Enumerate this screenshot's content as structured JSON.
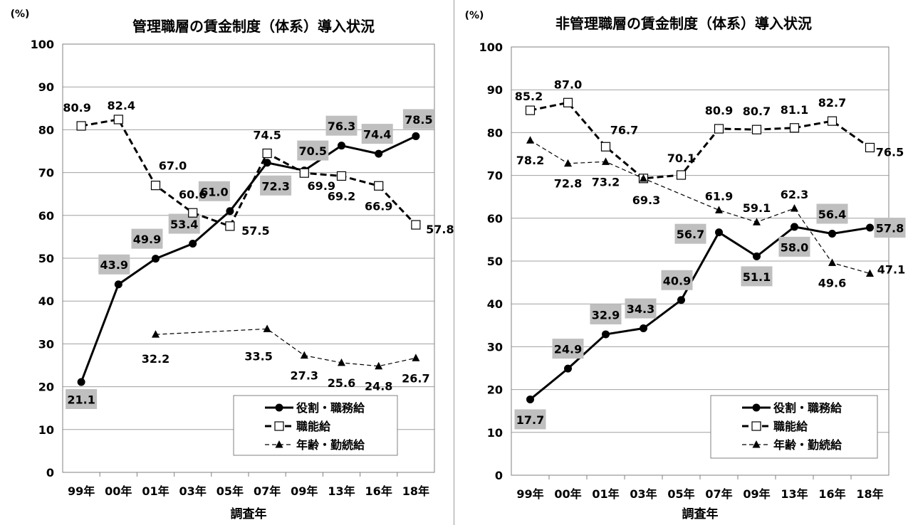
{
  "chart_data": [
    {
      "type": "line",
      "title": "管理職層の賃金制度（体系）導入状況",
      "unit_label": "(%)",
      "xlabel": "調査年",
      "categories": [
        "99年",
        "00年",
        "01年",
        "03年",
        "05年",
        "07年",
        "09年",
        "13年",
        "16年",
        "18年"
      ],
      "ylim": [
        0,
        100
      ],
      "yticks": [
        0,
        10,
        20,
        30,
        40,
        50,
        60,
        70,
        80,
        90,
        100
      ],
      "grid": true,
      "legend_position": "bottom-right",
      "series": [
        {
          "name": "役割・職務給",
          "style": "solid-thick",
          "marker": "filled-circle",
          "color": "#000000",
          "values": [
            21.1,
            43.9,
            49.9,
            53.4,
            61.0,
            72.3,
            70.5,
            76.3,
            74.4,
            78.5
          ],
          "labels": [
            "21.1",
            "43.9",
            "49.9",
            "53.4",
            "61.0",
            "72.3",
            "70.5",
            "76.3",
            "74.4",
            "78.5"
          ]
        },
        {
          "name": "職能給",
          "style": "dashed-thick",
          "marker": "open-square",
          "color": "#000000",
          "values": [
            80.9,
            82.4,
            67.0,
            60.6,
            57.5,
            74.5,
            69.9,
            69.2,
            66.9,
            57.8
          ],
          "labels": [
            "80.9",
            "82.4",
            "67.0",
            "60.6",
            "57.5",
            "74.5",
            "69.9",
            "69.2",
            "66.9",
            "57.8"
          ]
        },
        {
          "name": "年齢・勤続給",
          "style": "dashed-thin",
          "marker": "filled-triangle",
          "color": "#000000",
          "values": [
            null,
            null,
            32.2,
            null,
            null,
            33.5,
            27.3,
            25.6,
            24.8,
            26.7
          ],
          "labels": [
            null,
            null,
            "32.2",
            null,
            null,
            "33.5",
            "27.3",
            "25.6",
            "24.8",
            "26.7"
          ]
        }
      ]
    },
    {
      "type": "line",
      "title": "非管理職層の賃金制度（体系）導入状況",
      "unit_label": "(%)",
      "xlabel": "調査年",
      "categories": [
        "99年",
        "00年",
        "01年",
        "03年",
        "05年",
        "07年",
        "09年",
        "13年",
        "16年",
        "18年"
      ],
      "ylim": [
        0,
        100
      ],
      "yticks": [
        0,
        10,
        20,
        30,
        40,
        50,
        60,
        70,
        80,
        90,
        100
      ],
      "grid": true,
      "legend_position": "bottom-right",
      "series": [
        {
          "name": "役割・職務給",
          "style": "solid-thick",
          "marker": "filled-circle",
          "color": "#000000",
          "values": [
            17.7,
            24.9,
            32.9,
            34.3,
            40.9,
            56.7,
            51.1,
            58.0,
            56.4,
            57.8
          ],
          "labels": [
            "17.7",
            "24.9",
            "32.9",
            "34.3",
            "40.9",
            "56.7",
            "51.1",
            "58.0",
            "56.4",
            "57.8"
          ]
        },
        {
          "name": "職能給",
          "style": "dashed-thick",
          "marker": "open-square",
          "color": "#000000",
          "values": [
            85.2,
            87.0,
            76.7,
            69.3,
            70.1,
            80.9,
            80.7,
            81.1,
            82.7,
            76.5
          ],
          "labels": [
            "85.2",
            "87.0",
            "76.7",
            "69.3",
            "70.1",
            "80.9",
            "80.7",
            "81.1",
            "82.7",
            "76.5"
          ]
        },
        {
          "name": "年齢・勤続給",
          "style": "dashed-thin",
          "marker": "filled-triangle",
          "color": "#000000",
          "values": [
            78.2,
            72.8,
            73.2,
            69.3,
            null,
            61.9,
            59.1,
            62.3,
            49.6,
            47.1
          ],
          "labels": [
            "78.2",
            "72.8",
            "73.2",
            null,
            null,
            "61.9",
            "59.1",
            "62.3",
            "49.6",
            "47.1"
          ]
        }
      ]
    }
  ],
  "colors": {
    "line": "#000000",
    "grid": "#a0a0a0",
    "label_box": "#bfbfbf",
    "background": "#ffffff"
  }
}
